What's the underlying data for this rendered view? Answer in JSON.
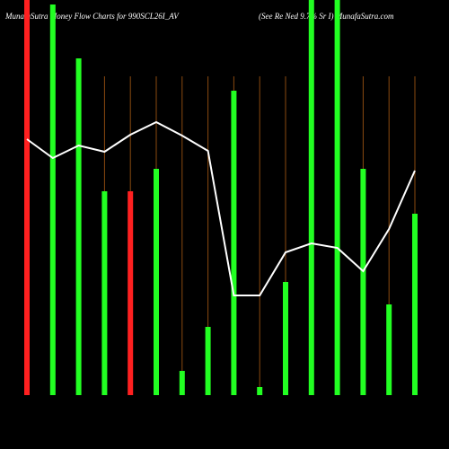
{
  "chart_data": {
    "type": "bar-line",
    "title": "MunafaSutra  Money Flow  Charts for 990SCL26I_AV",
    "subtitle": "(See Re  Ned 9.7% Sr I)  MunafaSutra.com",
    "categories": [
      null,
      null,
      null,
      null,
      null,
      null,
      null,
      null,
      null,
      null,
      null,
      null,
      null,
      null,
      null,
      null
    ],
    "series": [
      {
        "name": null,
        "kind": "bar",
        "colors": [
          "#ff2020",
          "#22ff22",
          "#22ff22",
          "#22ff22",
          "#ff2020",
          "#22ff22",
          "#22ff22",
          "#22ff22",
          "#22ff22",
          "#22ff22",
          "#22ff22",
          "#22ff22",
          "#22ff22",
          "#22ff22",
          "#22ff22",
          "#22ff22"
        ],
        "values": [
          440,
          435,
          375,
          227,
          227,
          252,
          27,
          76,
          339,
          9,
          126,
          440,
          440,
          252,
          101,
          202
        ]
      },
      {
        "name": null,
        "kind": "line",
        "color": "#ffffff",
        "values": [
          285,
          264,
          278,
          271,
          290,
          304,
          289,
          272,
          111,
          111,
          159,
          169,
          164,
          138,
          185,
          250
        ]
      }
    ],
    "ylim": [
      0,
      440
    ]
  }
}
